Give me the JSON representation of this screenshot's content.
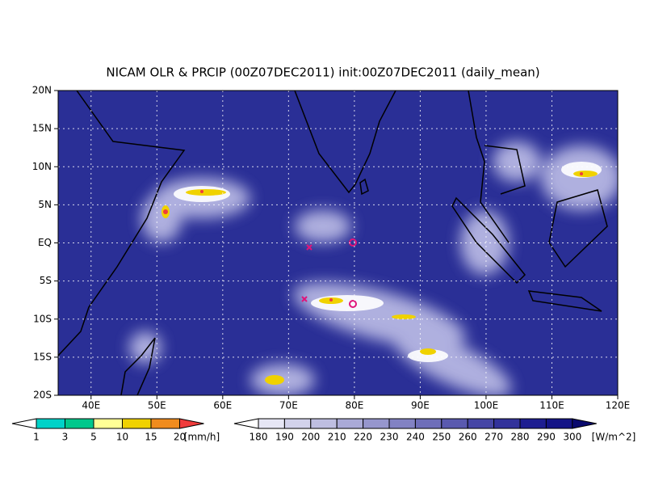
{
  "title": "NICAM OLR & PRCIP (00Z07DEC2011) init:00Z07DEC2011 (daily_mean)",
  "map": {
    "lon_range": [
      35,
      120
    ],
    "lat_range": [
      -20,
      20
    ],
    "lon_ticks": [
      {
        "value": 40,
        "label": "40E"
      },
      {
        "value": 50,
        "label": "50E"
      },
      {
        "value": 60,
        "label": "60E"
      },
      {
        "value": 70,
        "label": "70E"
      },
      {
        "value": 80,
        "label": "80E"
      },
      {
        "value": 90,
        "label": "90E"
      },
      {
        "value": 100,
        "label": "100E"
      },
      {
        "value": 110,
        "label": "110E"
      },
      {
        "value": 120,
        "label": "120E"
      }
    ],
    "lat_ticks": [
      {
        "value": 20,
        "label": "20N"
      },
      {
        "value": 15,
        "label": "15N"
      },
      {
        "value": 10,
        "label": "10N"
      },
      {
        "value": 5,
        "label": "5N"
      },
      {
        "value": 0,
        "label": "EQ"
      },
      {
        "value": -5,
        "label": "5S"
      },
      {
        "value": -10,
        "label": "10S"
      },
      {
        "value": -15,
        "label": "15S"
      },
      {
        "value": -20,
        "label": "20S"
      }
    ]
  },
  "precip_colorbar": {
    "levels": [
      1,
      3,
      5,
      10,
      15,
      20
    ],
    "unit": "[mm/h]",
    "colors": [
      "#ffffff",
      "#00d2c8",
      "#00c88c",
      "#ffff96",
      "#f0d200",
      "#f08c1e",
      "#f03c3c"
    ]
  },
  "olr_colorbar": {
    "levels": [
      180,
      190,
      200,
      210,
      220,
      230,
      240,
      250,
      260,
      270,
      280,
      290,
      300
    ],
    "unit": "[W/m^2]",
    "colors": [
      "#ffffff",
      "#e6e6f5",
      "#d2d2eb",
      "#bebee1",
      "#aaaad7",
      "#9696cd",
      "#8282c3",
      "#6e6eb9",
      "#5a5aaf",
      "#4646a5",
      "#32329b",
      "#1e1e91",
      "#141487",
      "#0a0a6e"
    ]
  }
}
